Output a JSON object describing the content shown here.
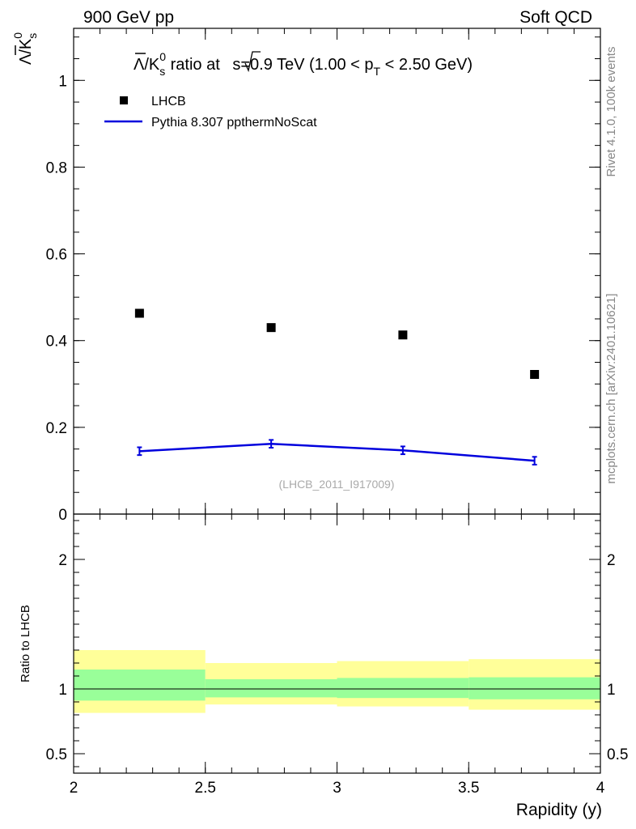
{
  "header": {
    "left": "900 GeV pp",
    "right": "Soft QCD"
  },
  "side_labels": {
    "rivet": "Rivet 4.1.0,  100k events",
    "mcplots": "mcplots.cern.ch [arXiv:2401.10621]"
  },
  "title": {
    "prefix": "/K",
    "sub": "s",
    "sup": "0",
    "mid": " ratio at ",
    "sqrt_s": "s=0.9 TeV (1.00 < p",
    "pt_sub": "T",
    "suffix": " < 2.50 GeV)"
  },
  "ylabel_main": {
    "lambda": "Λ",
    "rest": "/K",
    "sub": "s",
    "sup": "0"
  },
  "legend": {
    "data_label": "LHCB",
    "mc_label": "Pythia 8.307 ppthermNoScat"
  },
  "watermark": "(LHCB_2011_I917009)",
  "colors": {
    "data": "#000000",
    "mc": "#0000dd",
    "band_inner": "#99ff99",
    "band_outer": "#ffff99"
  },
  "chart_data": [
    {
      "type": "scatter",
      "panel": "main",
      "xlim": [
        2.0,
        4.0
      ],
      "ylim": [
        0.0,
        1.12
      ],
      "yticks": [
        0,
        0.2,
        0.4,
        0.6,
        0.8,
        1
      ],
      "ytick_labels": [
        "0",
        "0.2",
        "0.4",
        "0.6",
        "0.8",
        "1"
      ],
      "series": [
        {
          "name": "LHCB",
          "kind": "points",
          "x": [
            2.25,
            2.75,
            3.25,
            3.75
          ],
          "y": [
            0.463,
            0.43,
            0.413,
            0.322
          ]
        },
        {
          "name": "Pythia 8.307 ppthermNoScat",
          "kind": "line",
          "x": [
            2.25,
            2.75,
            3.25,
            3.75
          ],
          "y": [
            0.145,
            0.162,
            0.147,
            0.123
          ],
          "yerr": [
            0.009,
            0.009,
            0.009,
            0.009
          ]
        }
      ]
    },
    {
      "type": "area",
      "panel": "ratio",
      "xlabel": "Rapidity (y)",
      "ylabel": "Ratio to LHCB",
      "xlim": [
        2.0,
        4.0
      ],
      "ylim": [
        0.35,
        2.35
      ],
      "xticks": [
        2,
        2.5,
        3,
        3.5,
        4
      ],
      "xtick_labels": [
        "2",
        "2.5",
        "3",
        "3.5",
        "4"
      ],
      "yticks": [
        0.5,
        1,
        2
      ],
      "ytick_labels": [
        "0.5",
        "1",
        "2"
      ],
      "bin_edges": [
        2.0,
        2.5,
        3.0,
        3.5,
        4.0
      ],
      "band_inner_low": [
        0.91,
        0.935,
        0.93,
        0.92
      ],
      "band_inner_high": [
        1.15,
        1.075,
        1.085,
        1.09
      ],
      "band_outer_low": [
        0.815,
        0.88,
        0.865,
        0.84
      ],
      "band_outer_high": [
        1.3,
        1.2,
        1.215,
        1.23
      ],
      "reference": 1.0
    }
  ]
}
